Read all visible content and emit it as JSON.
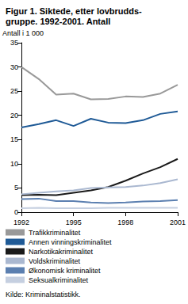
{
  "chart_data": {
    "type": "line",
    "title": "Figur 1. Siktede, etter lovbrudds-\ngruppe. 1992-2001. Antall",
    "y_label": "Antall i 1 000",
    "source": "Kilde: Kriminalstatistikk.",
    "x": [
      1992,
      1993,
      1994,
      1995,
      1996,
      1997,
      1998,
      1999,
      2000,
      2001
    ],
    "series": [
      {
        "name": "Trafikkriminalitet",
        "color": "#999999",
        "values": [
          30,
          27.5,
          24.3,
          24.5,
          23.3,
          23.4,
          23.9,
          23.8,
          24.5,
          26.3
        ]
      },
      {
        "name": "Annen vinningskriminalitet",
        "color": "#1f5a96",
        "values": [
          17.5,
          18.2,
          19,
          17.8,
          19.3,
          18.5,
          18.4,
          19,
          20.3,
          20.8
        ]
      },
      {
        "name": "Narkotikakriminalitet",
        "color": "#1a1a1a",
        "values": [
          3.5,
          3.6,
          3.5,
          4,
          4.5,
          5.2,
          6.5,
          8,
          9.3,
          11
        ]
      },
      {
        "name": "Voldskriminalitet",
        "color": "#aab8d0",
        "values": [
          3.7,
          4,
          4.3,
          4.5,
          5,
          5.1,
          5.2,
          5.5,
          6,
          6.8
        ]
      },
      {
        "name": "Økonomisk kriminalitet",
        "color": "#5b7fb0",
        "values": [
          2.7,
          2.8,
          2.3,
          2.3,
          2,
          1.9,
          2,
          2.2,
          2.3,
          2.5
        ]
      },
      {
        "name": "Seksualkriminalitet",
        "color": "#c5cfe0",
        "values": [
          0.8,
          0.9,
          0.8,
          0.8,
          0.8,
          0.9,
          0.9,
          0.9,
          0.9,
          0.9
        ]
      }
    ],
    "xlim": [
      1992,
      2001
    ],
    "xticks": [
      1992,
      1995,
      1998,
      2001
    ],
    "ylim": [
      0,
      35
    ],
    "yticks": [
      0,
      5,
      10,
      15,
      20,
      25,
      30,
      35
    ],
    "grid": false,
    "legend": "bottom"
  }
}
